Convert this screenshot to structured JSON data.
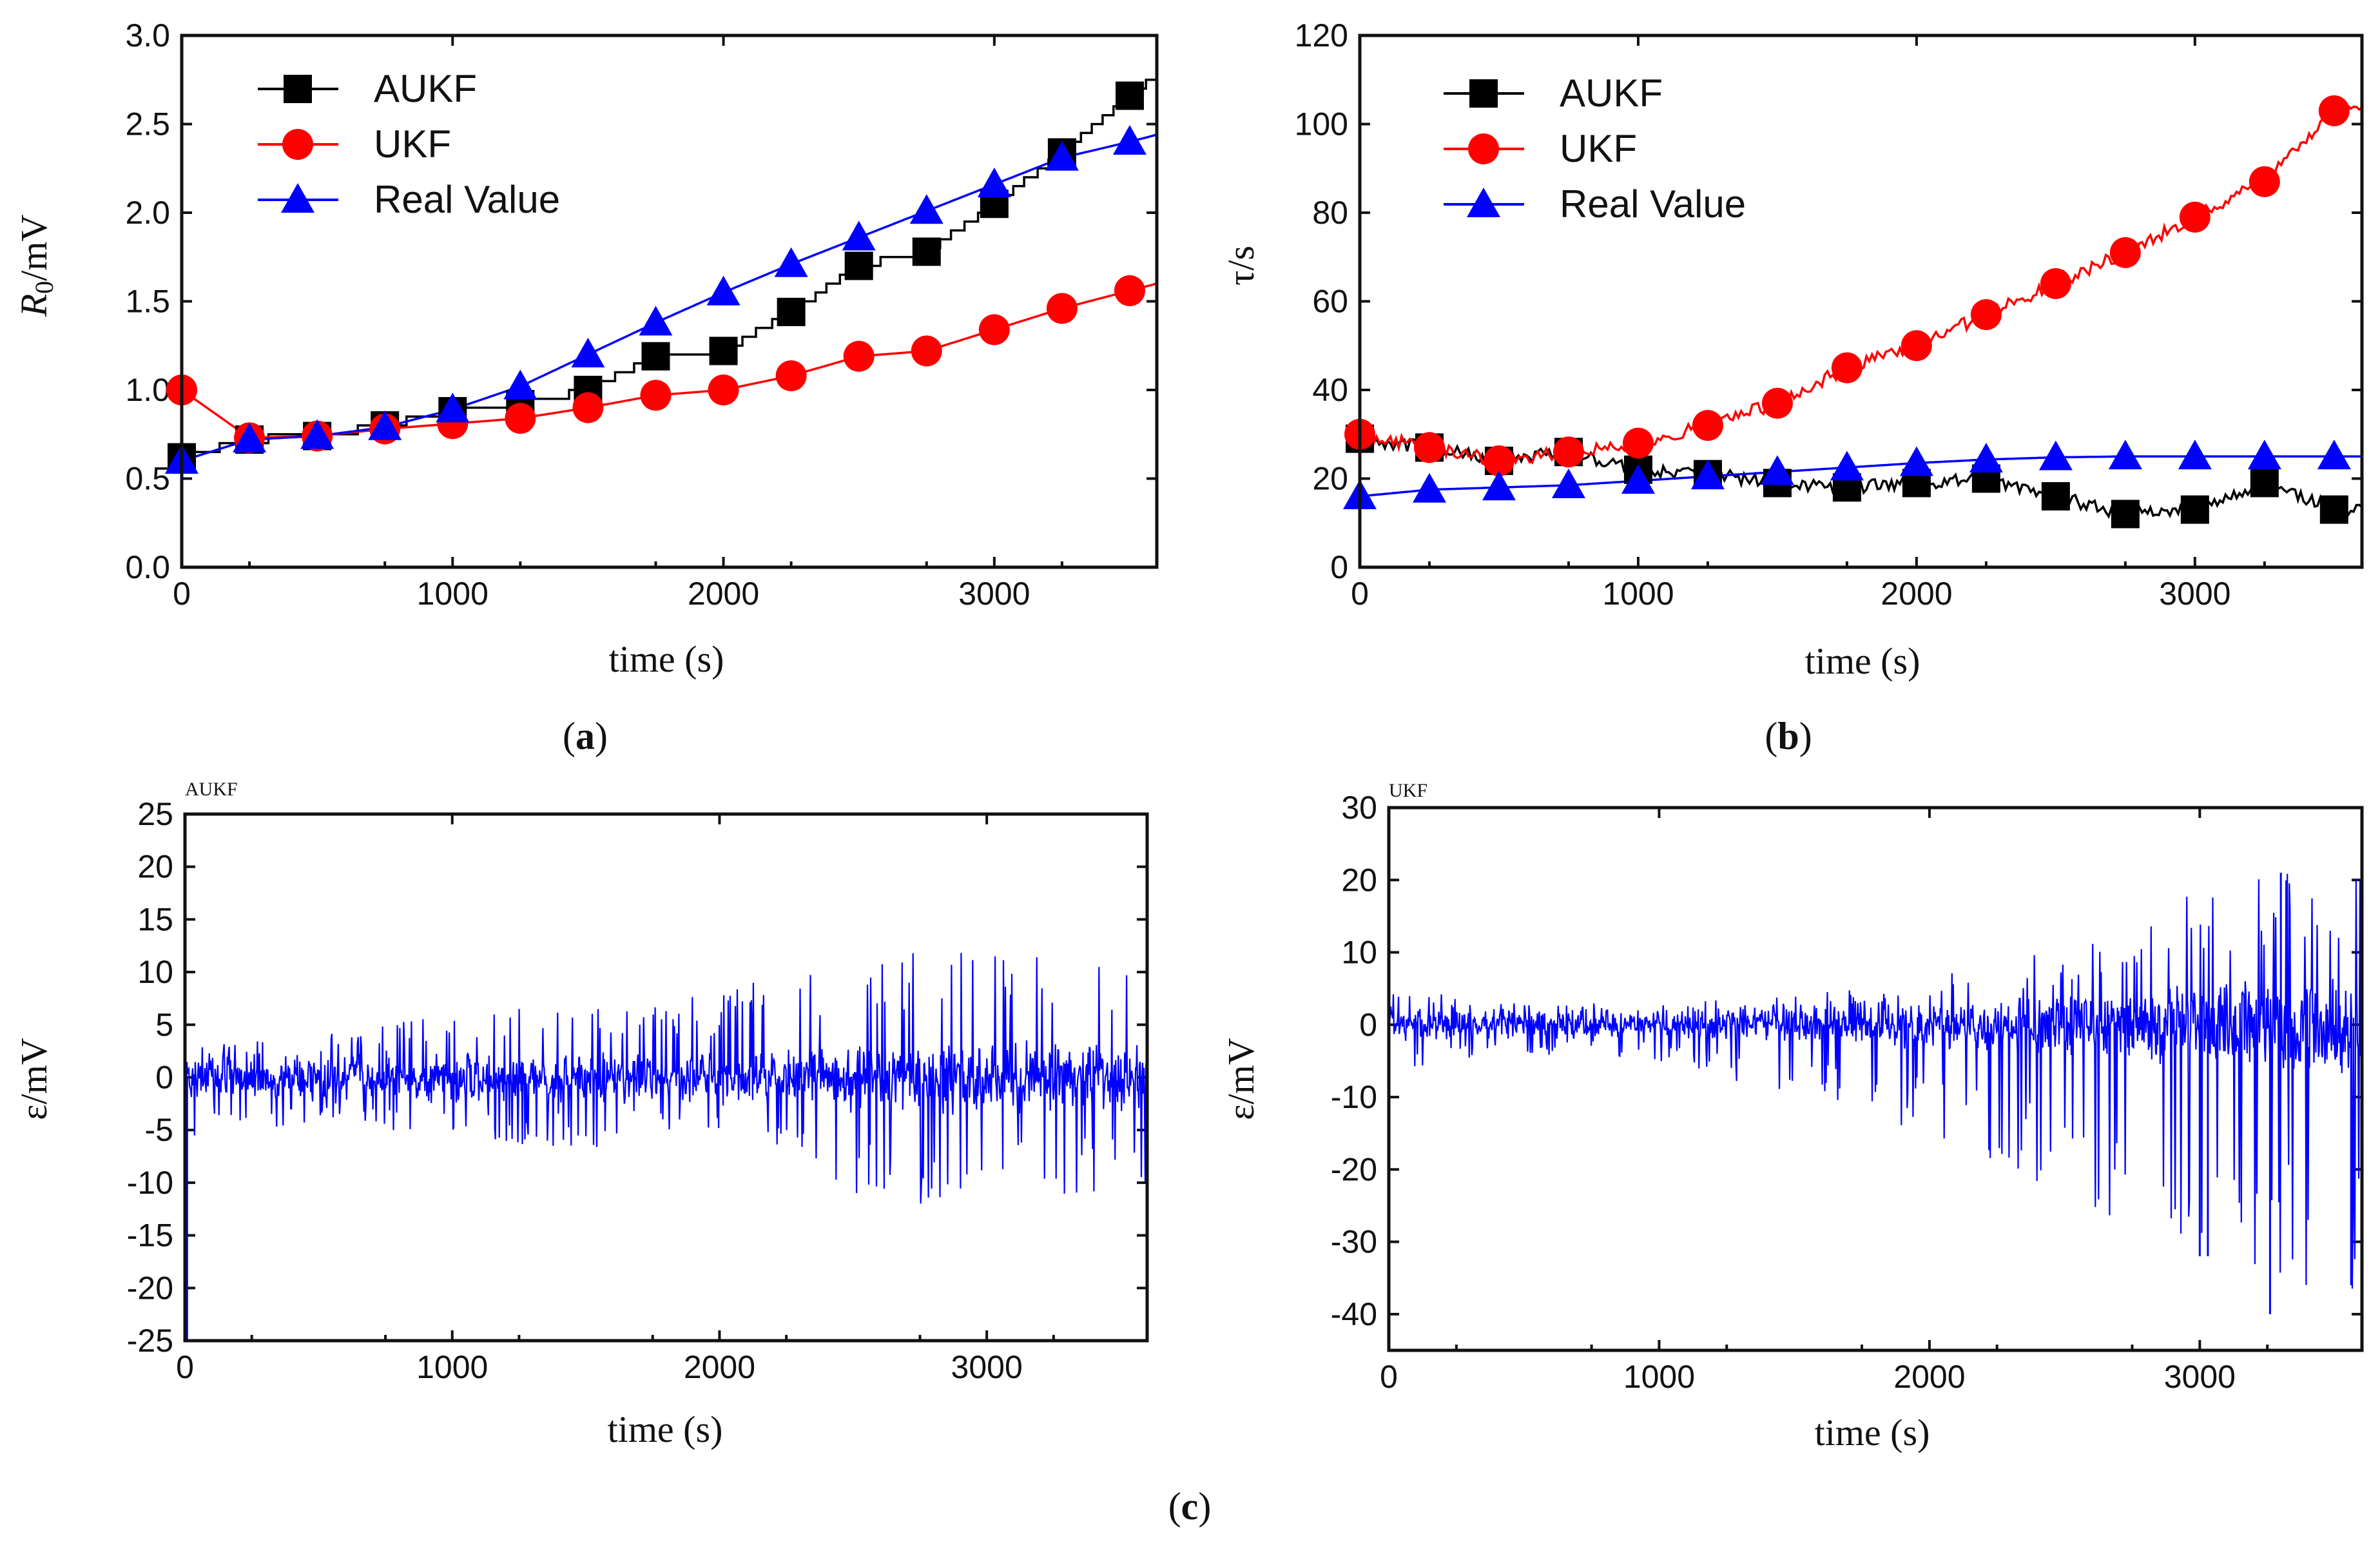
{
  "figure": {
    "panel_labels": [
      {
        "open": "(",
        "letter": "a",
        "close": ")"
      },
      {
        "open": "(",
        "letter": "b",
        "close": ")"
      },
      {
        "open": "(",
        "letter": "c",
        "close": ")"
      }
    ]
  },
  "chart_data": [
    {
      "id": "a",
      "type": "line",
      "title": "",
      "xlabel": "time (s)",
      "ylabel_main": "R",
      "ylabel_sub": "0",
      "ylabel_rest": "/mV",
      "xlim": [
        0,
        3600
      ],
      "ylim": [
        0,
        3.0
      ],
      "xticks": [
        0,
        1000,
        2000,
        3000
      ],
      "xtick_labels": [
        "0",
        "1000",
        "2000",
        "3000"
      ],
      "yticks": [
        0,
        0.5,
        1.0,
        1.5,
        2.0,
        2.5,
        3.0
      ],
      "ytick_labels": [
        "0.0",
        "0.5",
        "1.0",
        "1.5",
        "2.0",
        "2.5",
        "3.0"
      ],
      "legend_position": "top-left",
      "series": [
        {
          "name": "AUKF",
          "color": "#000000",
          "marker": "square",
          "step": true,
          "x": [
            0,
            250,
            500,
            750,
            1000,
            1250,
            1500,
            1750,
            2000,
            2250,
            2500,
            2750,
            3000,
            3250,
            3500,
            3600
          ],
          "y": [
            0.62,
            0.72,
            0.74,
            0.8,
            0.88,
            0.92,
            1.0,
            1.19,
            1.22,
            1.44,
            1.7,
            1.78,
            2.05,
            2.34,
            2.66,
            2.78
          ]
        },
        {
          "name": "UKF",
          "color": "#ff0000",
          "marker": "circle",
          "x": [
            0,
            250,
            500,
            750,
            1000,
            1250,
            1500,
            1750,
            2000,
            2250,
            2500,
            2750,
            3000,
            3250,
            3500,
            3600
          ],
          "y": [
            1.0,
            0.73,
            0.74,
            0.78,
            0.81,
            0.84,
            0.9,
            0.97,
            1.0,
            1.08,
            1.19,
            1.22,
            1.34,
            1.46,
            1.56,
            1.6
          ]
        },
        {
          "name": "Real Value",
          "color": "#0000ff",
          "marker": "triangle",
          "x": [
            0,
            250,
            500,
            750,
            1000,
            1250,
            1500,
            1750,
            2000,
            2250,
            2500,
            2750,
            3000,
            3250,
            3500,
            3600
          ],
          "y": [
            0.6,
            0.72,
            0.74,
            0.79,
            0.89,
            1.02,
            1.2,
            1.38,
            1.55,
            1.71,
            1.86,
            2.01,
            2.16,
            2.31,
            2.4,
            2.44
          ]
        }
      ]
    },
    {
      "id": "b",
      "type": "line",
      "title": "",
      "xlabel": "time (s)",
      "ylabel": "τ/s",
      "xlim": [
        0,
        3600
      ],
      "ylim": [
        0,
        120
      ],
      "xticks": [
        0,
        1000,
        2000,
        3000
      ],
      "xtick_labels": [
        "0",
        "1000",
        "2000",
        "3000"
      ],
      "yticks": [
        0,
        20,
        40,
        60,
        80,
        100,
        120
      ],
      "ytick_labels": [
        "0",
        "20",
        "40",
        "60",
        "80",
        "100",
        "120"
      ],
      "legend_position": "top-left",
      "series": [
        {
          "name": "AUKF",
          "color": "#000000",
          "marker": "square",
          "jagged": true,
          "x": [
            0,
            250,
            500,
            750,
            1000,
            1250,
            1500,
            1750,
            2000,
            2250,
            2500,
            2750,
            3000,
            3250,
            3500,
            3600
          ],
          "y": [
            29,
            27,
            24,
            26,
            22,
            21,
            19,
            18,
            19,
            20,
            16,
            12,
            13,
            19,
            13,
            13
          ]
        },
        {
          "name": "UKF",
          "color": "#ff0000",
          "marker": "circle",
          "jagged": true,
          "x": [
            0,
            250,
            500,
            750,
            1000,
            1250,
            1500,
            1750,
            2000,
            2250,
            2500,
            2750,
            3000,
            3250,
            3500,
            3600
          ],
          "y": [
            30,
            27,
            24,
            26,
            28,
            32,
            37,
            45,
            50,
            57,
            64,
            71,
            79,
            87,
            103,
            103
          ]
        },
        {
          "name": "Real Value",
          "color": "#0000ff",
          "marker": "triangle",
          "x": [
            0,
            250,
            500,
            750,
            1000,
            1250,
            1500,
            1750,
            2000,
            2250,
            2500,
            2750,
            3000,
            3250,
            3500,
            3600
          ],
          "y": [
            16,
            17.5,
            18,
            18.5,
            19.5,
            20.5,
            21.5,
            22.5,
            23.5,
            24.3,
            24.8,
            25,
            25,
            25,
            25,
            25
          ]
        }
      ]
    },
    {
      "id": "c1",
      "type": "line",
      "title": "AUKF",
      "xlabel": "time (s)",
      "ylabel": "ε/mV",
      "xlim": [
        0,
        3600
      ],
      "ylim": [
        -25,
        25
      ],
      "xticks": [
        0,
        1000,
        2000,
        3000
      ],
      "xtick_labels": [
        "0",
        "1000",
        "2000",
        "3000"
      ],
      "yticks": [
        -25,
        -20,
        -15,
        -10,
        -5,
        0,
        5,
        10,
        15,
        20,
        25
      ],
      "ytick_labels": [
        "-25",
        "-20",
        "-15",
        "-10",
        "-5",
        "0",
        "5",
        "10",
        "15",
        "20",
        "25"
      ],
      "series": [
        {
          "color": "#0000ff",
          "noise": true,
          "envelope_x": [
            0,
            500,
            1000,
            1500,
            2000,
            2500,
            3000,
            3600
          ],
          "envelope_max": [
            3,
            4,
            6,
            7,
            8,
            12,
            12,
            13
          ],
          "envelope_min": [
            -7,
            -4,
            -6,
            -7,
            -5,
            -11,
            -13,
            -10
          ],
          "spike_x": [
            8
          ],
          "spike_y": [
            -25
          ]
        }
      ]
    },
    {
      "id": "c2",
      "type": "line",
      "title": "UKF",
      "xlabel": "time (s)",
      "ylabel": "ε/mV",
      "xlim": [
        0,
        3600
      ],
      "ylim": [
        -45,
        30
      ],
      "xticks": [
        0,
        1000,
        2000,
        3000
      ],
      "xtick_labels": [
        "0",
        "1000",
        "2000",
        "3000"
      ],
      "yticks": [
        -40,
        -30,
        -20,
        -10,
        0,
        10,
        20,
        30
      ],
      "ytick_labels": [
        "-40",
        "-30",
        "-20",
        "-10",
        "0",
        "10",
        "20",
        "30"
      ],
      "series": [
        {
          "color": "#0000ff",
          "noise": true,
          "envelope_x": [
            0,
            500,
            1000,
            1500,
            2000,
            2500,
            3000,
            3600
          ],
          "envelope_max": [
            5,
            3,
            3,
            4,
            7,
            11,
            20,
            22
          ],
          "envelope_min": [
            -8,
            -4,
            -5,
            -10,
            -15,
            -24,
            -32,
            -40
          ],
          "spike_x": [
            3000,
            3030,
            3260,
            3300,
            3560
          ],
          "spike_y": [
            -32,
            -32,
            -40,
            21,
            -36
          ]
        }
      ]
    }
  ]
}
